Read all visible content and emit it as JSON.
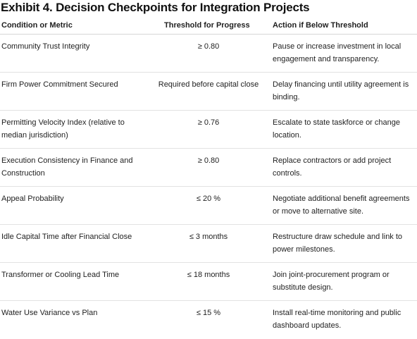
{
  "title": "Exhibit 4. Decision Checkpoints for Integration Projects",
  "table": {
    "headers": [
      "Condition or Metric",
      "Threshold for Progress",
      "Action if Below Threshold"
    ],
    "rows": [
      {
        "metric": "Community Trust Integrity",
        "threshold": "≥ 0.80",
        "action": "Pause or increase investment in local engagement and transparency."
      },
      {
        "metric": "Firm Power Commitment Secured",
        "threshold": "Required before capital close",
        "action": "Delay financing until utility agreement is binding."
      },
      {
        "metric": "Permitting Velocity Index (relative to median jurisdiction)",
        "threshold": "≥ 0.76",
        "action": "Escalate to state taskforce or change location."
      },
      {
        "metric": "Execution Consistency in Finance and Construction",
        "threshold": "≥ 0.80",
        "action": "Replace contractors or add project controls."
      },
      {
        "metric": "Appeal Probability",
        "threshold": "≤ 20 %",
        "action": "Negotiate additional benefit agreements or move to alternative site."
      },
      {
        "metric": "Idle Capital Time after Financial Close",
        "threshold": "≤ 3 months",
        "action": "Restructure draw schedule and link to power milestones."
      },
      {
        "metric": "Transformer or Cooling Lead Time",
        "threshold": "≤ 18 months",
        "action": "Join joint-procurement program or substitute design."
      },
      {
        "metric": "Water Use Variance vs Plan",
        "threshold": "≤ 15 %",
        "action": "Install real-time monitoring and public dashboard updates."
      }
    ]
  }
}
